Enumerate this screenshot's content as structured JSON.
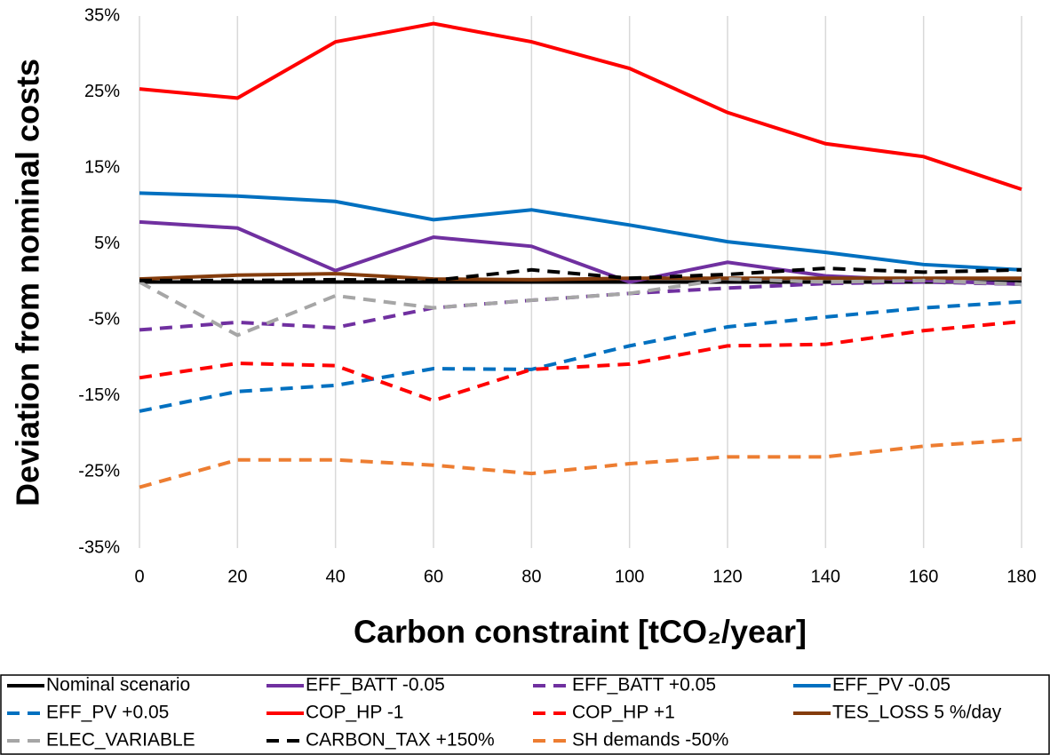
{
  "chart_data": {
    "type": "line",
    "y_label": "Deviation from nominal costs",
    "x_label": "Carbon constraint [tCO₂/year]",
    "x": [
      0,
      20,
      40,
      60,
      80,
      100,
      120,
      140,
      160,
      180
    ],
    "xlim": [
      0,
      180
    ],
    "xticks": [
      0,
      20,
      40,
      60,
      80,
      100,
      120,
      140,
      160,
      180
    ],
    "ylim": [
      -35,
      35
    ],
    "yticks": [
      {
        "value": 35,
        "label": "35%"
      },
      {
        "value": 25,
        "label": "25%"
      },
      {
        "value": 15,
        "label": "15%"
      },
      {
        "value": 5,
        "label": "5%"
      },
      {
        "value": -5,
        "label": "-5%"
      },
      {
        "value": -15,
        "label": "-15%"
      },
      {
        "value": -25,
        "label": "-25%"
      },
      {
        "value": -35,
        "label": "-35%"
      }
    ],
    "grid": "x",
    "legend": "bottom",
    "series": [
      {
        "name": "Nominal scenario",
        "color": "#000000",
        "dash": false,
        "values": [
          0,
          0,
          0,
          0,
          0,
          0,
          0,
          0,
          0,
          0
        ]
      },
      {
        "name": "EFF_BATT -0.05",
        "color": "#7030a0",
        "dash": false,
        "values": [
          7.9,
          7.1,
          1.5,
          5.9,
          4.7,
          0,
          2.6,
          0.8,
          0.2,
          -0.3
        ]
      },
      {
        "name": "EFF_BATT +0.05",
        "color": "#7030a0",
        "dash": true,
        "values": [
          -6.3,
          -5.3,
          -6.0,
          -3.4,
          -2.4,
          -1.5,
          -0.8,
          -0.2,
          0,
          -0.3
        ]
      },
      {
        "name": "EFF_PV -0.05",
        "color": "#0070c0",
        "dash": false,
        "values": [
          11.7,
          11.3,
          10.6,
          8.2,
          9.5,
          7.5,
          5.3,
          3.9,
          2.3,
          1.6
        ]
      },
      {
        "name": "EFF_PV +0.05",
        "color": "#0070c0",
        "dash": true,
        "values": [
          -17,
          -14.4,
          -13.6,
          -11.4,
          -11.5,
          -8.4,
          -5.9,
          -4.6,
          -3.4,
          -2.6
        ]
      },
      {
        "name": "COP_HP -1",
        "color": "#ff0000",
        "dash": false,
        "values": [
          25.4,
          24.2,
          31.6,
          34,
          31.6,
          28.1,
          22.3,
          18.2,
          16.5,
          12.2
        ]
      },
      {
        "name": "COP_HP +1",
        "color": "#ff0000",
        "dash": true,
        "values": [
          -12.6,
          -10.7,
          -11,
          -15.6,
          -11.5,
          -10.8,
          -8.4,
          -8.2,
          -6.4,
          -5.2
        ]
      },
      {
        "name": "TES_LOSS 5 %/day",
        "color": "#843c0c",
        "dash": false,
        "values": [
          0.4,
          0.9,
          1.1,
          0.4,
          0.3,
          0.5,
          0.5,
          0.5,
          0.5,
          0.5
        ]
      },
      {
        "name": "ELEC_VARIABLE",
        "color": "#a6a6a6",
        "dash": true,
        "values": [
          0,
          -7,
          -1.8,
          -3.4,
          -2.4,
          -1.5,
          0.4,
          0,
          0.2,
          -0.3
        ]
      },
      {
        "name": "CARBON_TAX +150%",
        "color": "#000000",
        "dash": true,
        "values": [
          0.2,
          0.2,
          0.3,
          0.2,
          1.6,
          0.5,
          1.0,
          1.8,
          1.3,
          1.6
        ]
      },
      {
        "name": "SH demands -50%",
        "color": "#ed7d31",
        "dash": true,
        "values": [
          -27,
          -23.4,
          -23.4,
          -24.1,
          -25.2,
          -23.9,
          -23,
          -23,
          -21.6,
          -20.7
        ]
      }
    ]
  }
}
